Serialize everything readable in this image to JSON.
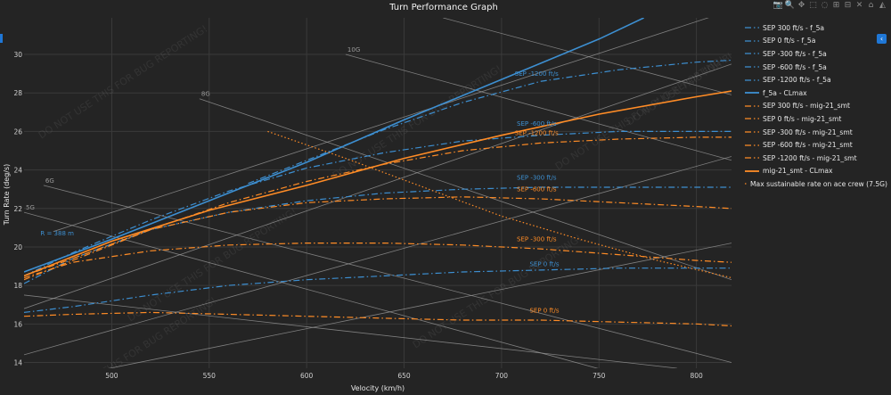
{
  "title": "Turn Performance Graph",
  "watermark": "DO NOT USE THIS FOR BUG REPORTING!",
  "modebar": [
    {
      "name": "camera-icon",
      "glyph": "📷"
    },
    {
      "name": "zoom-icon",
      "glyph": "🔍"
    },
    {
      "name": "pan-icon",
      "glyph": "✥"
    },
    {
      "name": "box-select-icon",
      "glyph": "⬚"
    },
    {
      "name": "lasso-select-icon",
      "glyph": "◌"
    },
    {
      "name": "zoom-in-icon",
      "glyph": "⊞"
    },
    {
      "name": "zoom-out-icon",
      "glyph": "⊟"
    },
    {
      "name": "autoscale-icon",
      "glyph": "✕"
    },
    {
      "name": "reset-axes-icon",
      "glyph": "⌂"
    },
    {
      "name": "plotly-logo-icon",
      "glyph": "◭"
    }
  ],
  "collapse_glyph": "‹",
  "chart_data": {
    "type": "line",
    "title": "Turn Performance Graph",
    "xlabel": "Velocity (km/h)",
    "ylabel": "Turn Rate (deg/s)",
    "xlim": [
      455,
      818
    ],
    "ylim": [
      13.7,
      31.9
    ],
    "xticks": [
      500,
      550,
      600,
      650,
      700,
      750,
      800
    ],
    "yticks": [
      14,
      16,
      18,
      20,
      22,
      24,
      26,
      28,
      30
    ],
    "grid": true,
    "legend_position": "right",
    "colors": {
      "f5a": "#3d8fd1",
      "mig21": "#ff8c26",
      "ref": "#9e9e9e"
    },
    "load_lines": [
      {
        "label": "5G",
        "points": [
          [
            455,
            21.8
          ],
          [
            818,
            11.8
          ]
        ]
      },
      {
        "label": "6G",
        "points": [
          [
            465,
            23.2
          ],
          [
            818,
            14.0
          ]
        ]
      },
      {
        "label": "8G",
        "points": [
          [
            545,
            27.7
          ],
          [
            818,
            18.3
          ]
        ]
      },
      {
        "label": "10G",
        "points": [
          [
            620,
            30.0
          ],
          [
            818,
            24.5
          ]
        ]
      },
      {
        "label": "",
        "points": [
          [
            455,
            17.5
          ],
          [
            790,
            13.7
          ]
        ]
      },
      {
        "label": "",
        "points": [
          [
            670,
            31.9
          ],
          [
            818,
            27.9
          ]
        ]
      },
      {
        "label": "",
        "points": [
          [
            455,
            12.8
          ],
          [
            818,
            20.2
          ]
        ]
      },
      {
        "label": "",
        "points": [
          [
            455,
            14.4
          ],
          [
            818,
            24.7
          ]
        ]
      },
      {
        "label": "",
        "points": [
          [
            455,
            16.8
          ],
          [
            818,
            29.5
          ]
        ]
      },
      {
        "label": "",
        "points": [
          [
            470,
            20.8
          ],
          [
            818,
            32.3
          ]
        ]
      }
    ],
    "radius_label": {
      "text": "R = 388 m",
      "x": 472,
      "y": 20.6
    },
    "sep_labels": [
      {
        "text": "SEP -1200 ft/s",
        "x": 718,
        "y": 28.9,
        "color": "f5a"
      },
      {
        "text": "SEP -600 ft/s",
        "x": 718,
        "y": 26.3,
        "color": "f5a"
      },
      {
        "text": "SEP -1200 ft/s",
        "x": 718,
        "y": 25.8,
        "color": "mig21"
      },
      {
        "text": "SEP -300 ft/s",
        "x": 718,
        "y": 23.5,
        "color": "f5a"
      },
      {
        "text": "SEP -600 ft/s",
        "x": 718,
        "y": 22.9,
        "color": "mig21"
      },
      {
        "text": "SEP -300 ft/s",
        "x": 718,
        "y": 20.3,
        "color": "mig21"
      },
      {
        "text": "SEP 0 ft/s",
        "x": 722,
        "y": 19.0,
        "color": "f5a"
      },
      {
        "text": "SEP 0 ft/s",
        "x": 722,
        "y": 16.6,
        "color": "mig21"
      }
    ],
    "series": [
      {
        "name": "SEP 300 ft/s - f_5a",
        "color": "f5a",
        "dash": "dashdot",
        "x": [
          455,
          818
        ],
        "y": [
          13.6,
          13.6
        ]
      },
      {
        "name": "SEP 0 ft/s - f_5a",
        "color": "f5a",
        "dash": "dashdot",
        "x": [
          455,
          480,
          520,
          560,
          600,
          640,
          680,
          720,
          760,
          800,
          818
        ],
        "y": [
          16.6,
          16.9,
          17.5,
          18.0,
          18.3,
          18.5,
          18.7,
          18.8,
          18.9,
          18.9,
          18.9
        ]
      },
      {
        "name": "SEP -300 ft/s - f_5a",
        "color": "f5a",
        "dash": "dashdot",
        "x": [
          455,
          480,
          520,
          560,
          600,
          640,
          680,
          720,
          760,
          800,
          818
        ],
        "y": [
          18.1,
          19.4,
          20.9,
          21.8,
          22.4,
          22.8,
          23.0,
          23.1,
          23.1,
          23.1,
          23.1
        ]
      },
      {
        "name": "SEP -600 ft/s - f_5a",
        "color": "f5a",
        "dash": "dashdot",
        "x": [
          455,
          480,
          520,
          560,
          600,
          640,
          680,
          720,
          760,
          800,
          818
        ],
        "y": [
          18.5,
          19.7,
          21.4,
          22.9,
          24.1,
          24.9,
          25.5,
          25.8,
          26.0,
          26.0,
          26.0
        ]
      },
      {
        "name": "SEP -1200 ft/s - f_5a",
        "color": "f5a",
        "dash": "dashdot",
        "x": [
          570,
          600,
          640,
          680,
          720,
          760,
          800,
          818
        ],
        "y": [
          23.3,
          24.5,
          26.1,
          27.5,
          28.6,
          29.2,
          29.6,
          29.7
        ]
      },
      {
        "name": "f_5a - CLmax",
        "color": "f5a",
        "dash": "solid",
        "x": [
          455,
          500,
          550,
          600,
          650,
          700,
          750,
          773
        ],
        "y": [
          18.7,
          20.4,
          22.4,
          24.4,
          26.6,
          28.7,
          30.8,
          31.9
        ]
      },
      {
        "name": "SEP 300 ft/s - mig-21_smt",
        "color": "mig21",
        "dash": "dashdot",
        "x": [
          455,
          818
        ],
        "y": [
          13.6,
          13.6
        ]
      },
      {
        "name": "SEP 0 ft/s - mig-21_smt",
        "color": "mig21",
        "dash": "dashdot",
        "x": [
          455,
          480,
          520,
          560,
          600,
          640,
          680,
          720,
          760,
          800,
          818
        ],
        "y": [
          16.4,
          16.5,
          16.6,
          16.5,
          16.4,
          16.3,
          16.2,
          16.2,
          16.1,
          16.0,
          15.9
        ]
      },
      {
        "name": "SEP -300 ft/s - mig-21_smt",
        "color": "mig21",
        "dash": "dashdot",
        "x": [
          455,
          480,
          520,
          560,
          600,
          640,
          680,
          720,
          760,
          800,
          818
        ],
        "y": [
          18.4,
          19.2,
          19.8,
          20.1,
          20.2,
          20.2,
          20.1,
          19.9,
          19.6,
          19.3,
          19.2
        ]
      },
      {
        "name": "SEP -600 ft/s - mig-21_smt",
        "color": "mig21",
        "dash": "dashdot",
        "x": [
          455,
          480,
          520,
          560,
          600,
          640,
          680,
          720,
          760,
          800,
          818
        ],
        "y": [
          18.3,
          19.3,
          20.9,
          21.8,
          22.3,
          22.5,
          22.6,
          22.5,
          22.3,
          22.1,
          22.0
        ]
      },
      {
        "name": "SEP -1200 ft/s - mig-21_smt",
        "color": "mig21",
        "dash": "dashdot",
        "x": [
          455,
          480,
          520,
          560,
          600,
          640,
          680,
          720,
          760,
          800,
          818
        ],
        "y": [
          18.5,
          19.4,
          20.9,
          22.3,
          23.4,
          24.3,
          25.0,
          25.4,
          25.6,
          25.7,
          25.7
        ]
      },
      {
        "name": "mig-21_smt - CLmax",
        "color": "mig21",
        "dash": "solid",
        "x": [
          455,
          500,
          550,
          600,
          650,
          700,
          750,
          800,
          818
        ],
        "y": [
          18.5,
          20.3,
          21.9,
          23.2,
          24.6,
          25.8,
          26.9,
          27.8,
          28.1
        ]
      },
      {
        "name": "Max sustainable rate on ace crew (7.5G)",
        "color": "mig21",
        "dash": "dot",
        "x": [
          580,
          620,
          660,
          700,
          740,
          780,
          818
        ],
        "y": [
          26.0,
          24.6,
          23.1,
          21.6,
          20.4,
          19.3,
          18.4
        ]
      }
    ]
  }
}
